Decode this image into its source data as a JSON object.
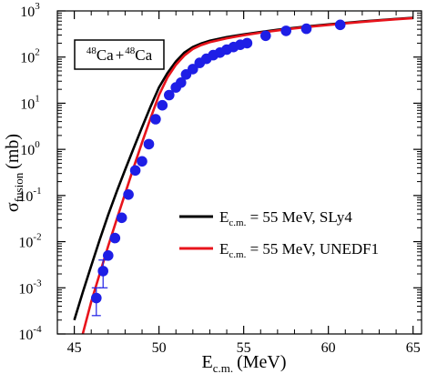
{
  "chart_data": {
    "type": "line",
    "ylabel_main": "σ",
    "ylabel_sub": "fusion",
    "ylabel_unit": "(mb)",
    "xlabel_main": "E",
    "xlabel_sub": "c.m.",
    "xlabel_unit": "(MeV)",
    "xlim": [
      44,
      65.5
    ],
    "ylim_log10": [
      -4,
      3
    ],
    "yscale": "log",
    "x_ticks": [
      45,
      50,
      55,
      60,
      65
    ],
    "x_tick_labels": [
      "45",
      "50",
      "55",
      "60",
      "65"
    ],
    "y_ticks_exp": [
      -4,
      -3,
      -2,
      -1,
      0,
      1,
      2,
      3
    ],
    "y_tick_bases": [
      "10",
      "10",
      "10",
      "10",
      "10",
      "10",
      "10",
      "10"
    ],
    "y_tick_exps": [
      "-4",
      "-3",
      "-2",
      "-1",
      "0",
      "1",
      "2",
      "3"
    ],
    "inset": {
      "mass1": "48",
      "elem1": "Ca",
      "plus": "+",
      "mass2": "48",
      "elem2": "Ca"
    },
    "legend": {
      "placement": "center-right",
      "entries": [
        {
          "prefix": "E",
          "sub": "c.m.",
          "rest": " = 55 MeV, SLy4",
          "color": "#000000"
        },
        {
          "prefix": "E",
          "sub": "c.m.",
          "rest": " = 55 MeV, UNEDF1",
          "color": "#e8141c"
        }
      ]
    },
    "series": [
      {
        "color": "#000000",
        "x": [
          45.0,
          45.5,
          46.0,
          46.5,
          47.0,
          47.5,
          48.0,
          48.5,
          49.0,
          49.5,
          50.0,
          50.5,
          51.0,
          51.5,
          52.0,
          52.5,
          53.0,
          54.0,
          55.0,
          56.0,
          57.0,
          58.0,
          59.0,
          60.0,
          61.0,
          62.0,
          63.0,
          64.0,
          65.0
        ],
        "y": [
          0.0002,
          0.0008,
          0.003,
          0.011,
          0.038,
          0.12,
          0.36,
          1.05,
          3.0,
          8.4,
          22,
          45,
          80,
          125,
          165,
          198,
          226,
          270,
          310,
          350,
          390,
          430,
          470,
          510,
          550,
          590,
          630,
          670,
          710
        ]
      },
      {
        "color": "#e8141c",
        "x": [
          45.5,
          46.0,
          46.5,
          47.0,
          47.5,
          48.0,
          48.5,
          49.0,
          49.5,
          50.0,
          50.5,
          51.0,
          51.5,
          52.0,
          52.5,
          53.0,
          54.0,
          55.0,
          56.0,
          57.0,
          58.0,
          59.0,
          60.0,
          61.0,
          62.0,
          63.0,
          64.0,
          65.0
        ],
        "y": [
          0.0001,
          0.0005,
          0.002,
          0.008,
          0.03,
          0.11,
          0.4,
          1.4,
          4.7,
          15,
          36,
          68,
          108,
          150,
          182,
          210,
          255,
          297,
          338,
          378,
          418,
          458,
          498,
          538,
          578,
          618,
          658,
          700
        ]
      }
    ],
    "data_points": {
      "color": "#1e1ee6",
      "x": [
        46.3,
        46.7,
        47.0,
        47.4,
        47.8,
        48.2,
        48.6,
        49.0,
        49.4,
        49.8,
        50.2,
        50.6,
        51.0,
        51.3,
        51.6,
        52.0,
        52.4,
        52.8,
        53.2,
        53.6,
        54.0,
        54.4,
        54.8,
        55.2,
        56.3,
        57.5,
        58.7,
        60.7
      ],
      "y": [
        0.0006,
        0.0023,
        0.005,
        0.012,
        0.033,
        0.105,
        0.35,
        0.55,
        1.3,
        4.5,
        9,
        15,
        22,
        28,
        42,
        55,
        75,
        92,
        110,
        125,
        145,
        165,
        185,
        200,
        290,
        370,
        410,
        500
      ]
    },
    "error_bars": [
      {
        "x": 46.3,
        "low": 0.00025,
        "high": 0.001
      },
      {
        "x": 46.7,
        "low": 0.001,
        "high": 0.004
      }
    ]
  }
}
